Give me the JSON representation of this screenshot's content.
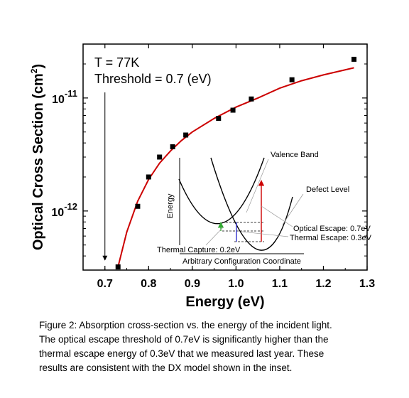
{
  "chart_data": {
    "type": "scatter",
    "xlabel": "Energy (eV)",
    "ylabel": "Optical Cross Section (cm",
    "ylabel_sup": "2",
    "ylabel_close": ")",
    "xlim": [
      0.65,
      1.3
    ],
    "ylim": [
      3e-13,
      3e-11
    ],
    "yscale": "log",
    "xticks": [
      "0.7",
      "0.8",
      "0.9",
      "1.0",
      "1.1",
      "1.2",
      "1.3"
    ],
    "xtick_values": [
      0.7,
      0.8,
      0.9,
      1.0,
      1.1,
      1.2,
      1.3
    ],
    "yticks": [
      {
        "value": 1e-12,
        "base": "10",
        "exp": "-12"
      },
      {
        "value": 1e-11,
        "base": "10",
        "exp": "-11"
      }
    ],
    "series": [
      {
        "kind": "points",
        "color": "#000000",
        "x": [
          0.73,
          0.775,
          0.8,
          0.825,
          0.855,
          0.885,
          0.96,
          0.993,
          1.035,
          1.128,
          1.27
        ],
        "y": [
          3.2e-13,
          1.1e-12,
          2e-12,
          3e-12,
          3.7e-12,
          4.7e-12,
          6.6e-12,
          7.8e-12,
          9.8e-12,
          1.45e-11,
          2.2e-11
        ]
      },
      {
        "kind": "fit",
        "color": "#cc0000",
        "x": [
          0.73,
          0.75,
          0.775,
          0.8,
          0.825,
          0.85,
          0.875,
          0.9,
          0.95,
          1.0,
          1.05,
          1.1,
          1.15,
          1.2,
          1.27
        ],
        "y": [
          3.2e-13,
          6.5e-13,
          1.22e-12,
          1.9e-12,
          2.65e-12,
          3.4e-12,
          4.2e-12,
          5e-12,
          6.6e-12,
          8.3e-12,
          1e-11,
          1.22e-11,
          1.42e-11,
          1.6e-11,
          1.85e-11
        ]
      }
    ],
    "annotations": {
      "temperature": "T = 77K",
      "threshold": "Threshold = 0.7 (eV)",
      "threshold_marker_x": 0.7
    },
    "inset": {
      "valence_band": "Valence Band",
      "defect_level": "Defect Level",
      "energy_axis": "Energy",
      "config_axis": "Arbitrary Configuration Coordinate",
      "optical_escape": "Optical Escape: 0.7eV",
      "thermal_escape": "Thermal Escape: 0.3eV",
      "thermal_capture": "Thermal Capture: 0.2eV",
      "colors": {
        "optical": "#cc0000",
        "thermal_escape": "#3333cc",
        "thermal_capture": "#33aa33"
      }
    }
  },
  "caption": {
    "lines": [
      "Figure 2: Absorption cross-section vs. the energy of the incident light.",
      "The optical escape threshold of 0.7eV is significantly higher than the",
      "thermal escape energy of 0.3eV that we measured last year.  These",
      "results are consistent with the DX model shown in the inset."
    ]
  }
}
